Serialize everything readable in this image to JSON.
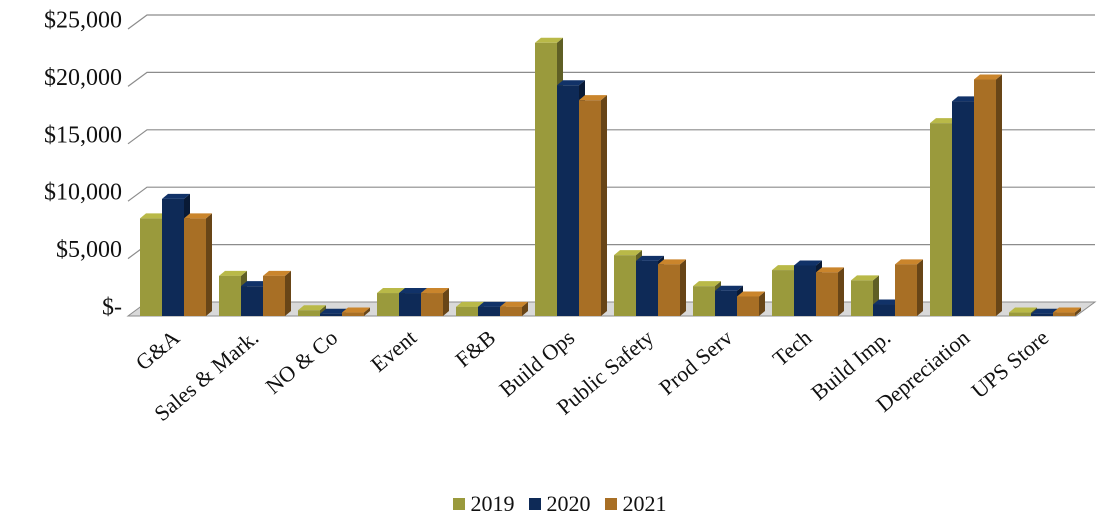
{
  "chart_data": {
    "type": "bar",
    "categories": [
      "G&A",
      "Sales & Mark.",
      "NO & Co",
      "Event",
      "F&B",
      "Build Ops",
      "Public Safety",
      "Prod Serv",
      "Tech",
      "Build Imp.",
      "Depreciation",
      "UPS Store"
    ],
    "series": [
      {
        "name": "2019",
        "color": "#9A9A3C",
        "values": [
          8500,
          3500,
          500,
          2000,
          800,
          23800,
          5300,
          2600,
          4000,
          3100,
          16800,
          300
        ]
      },
      {
        "name": "2020",
        "color": "#0E2A57",
        "values": [
          10200,
          2600,
          200,
          2000,
          800,
          20100,
          4800,
          2200,
          4400,
          1000,
          18700,
          200
        ]
      },
      {
        "name": "2021",
        "color": "#A86F25",
        "values": [
          8500,
          3500,
          300,
          2000,
          800,
          18800,
          4500,
          1700,
          3800,
          4500,
          20600,
          300
        ]
      }
    ],
    "yticks": [
      0,
      5000,
      10000,
      15000,
      20000,
      25000
    ],
    "ytick_labels": [
      "$-",
      "$5,000",
      "$10,000",
      "$15,000",
      "$20,000",
      "$25,000"
    ],
    "ylim": [
      0,
      25000
    ],
    "grid": true,
    "legend_position": "bottom"
  }
}
